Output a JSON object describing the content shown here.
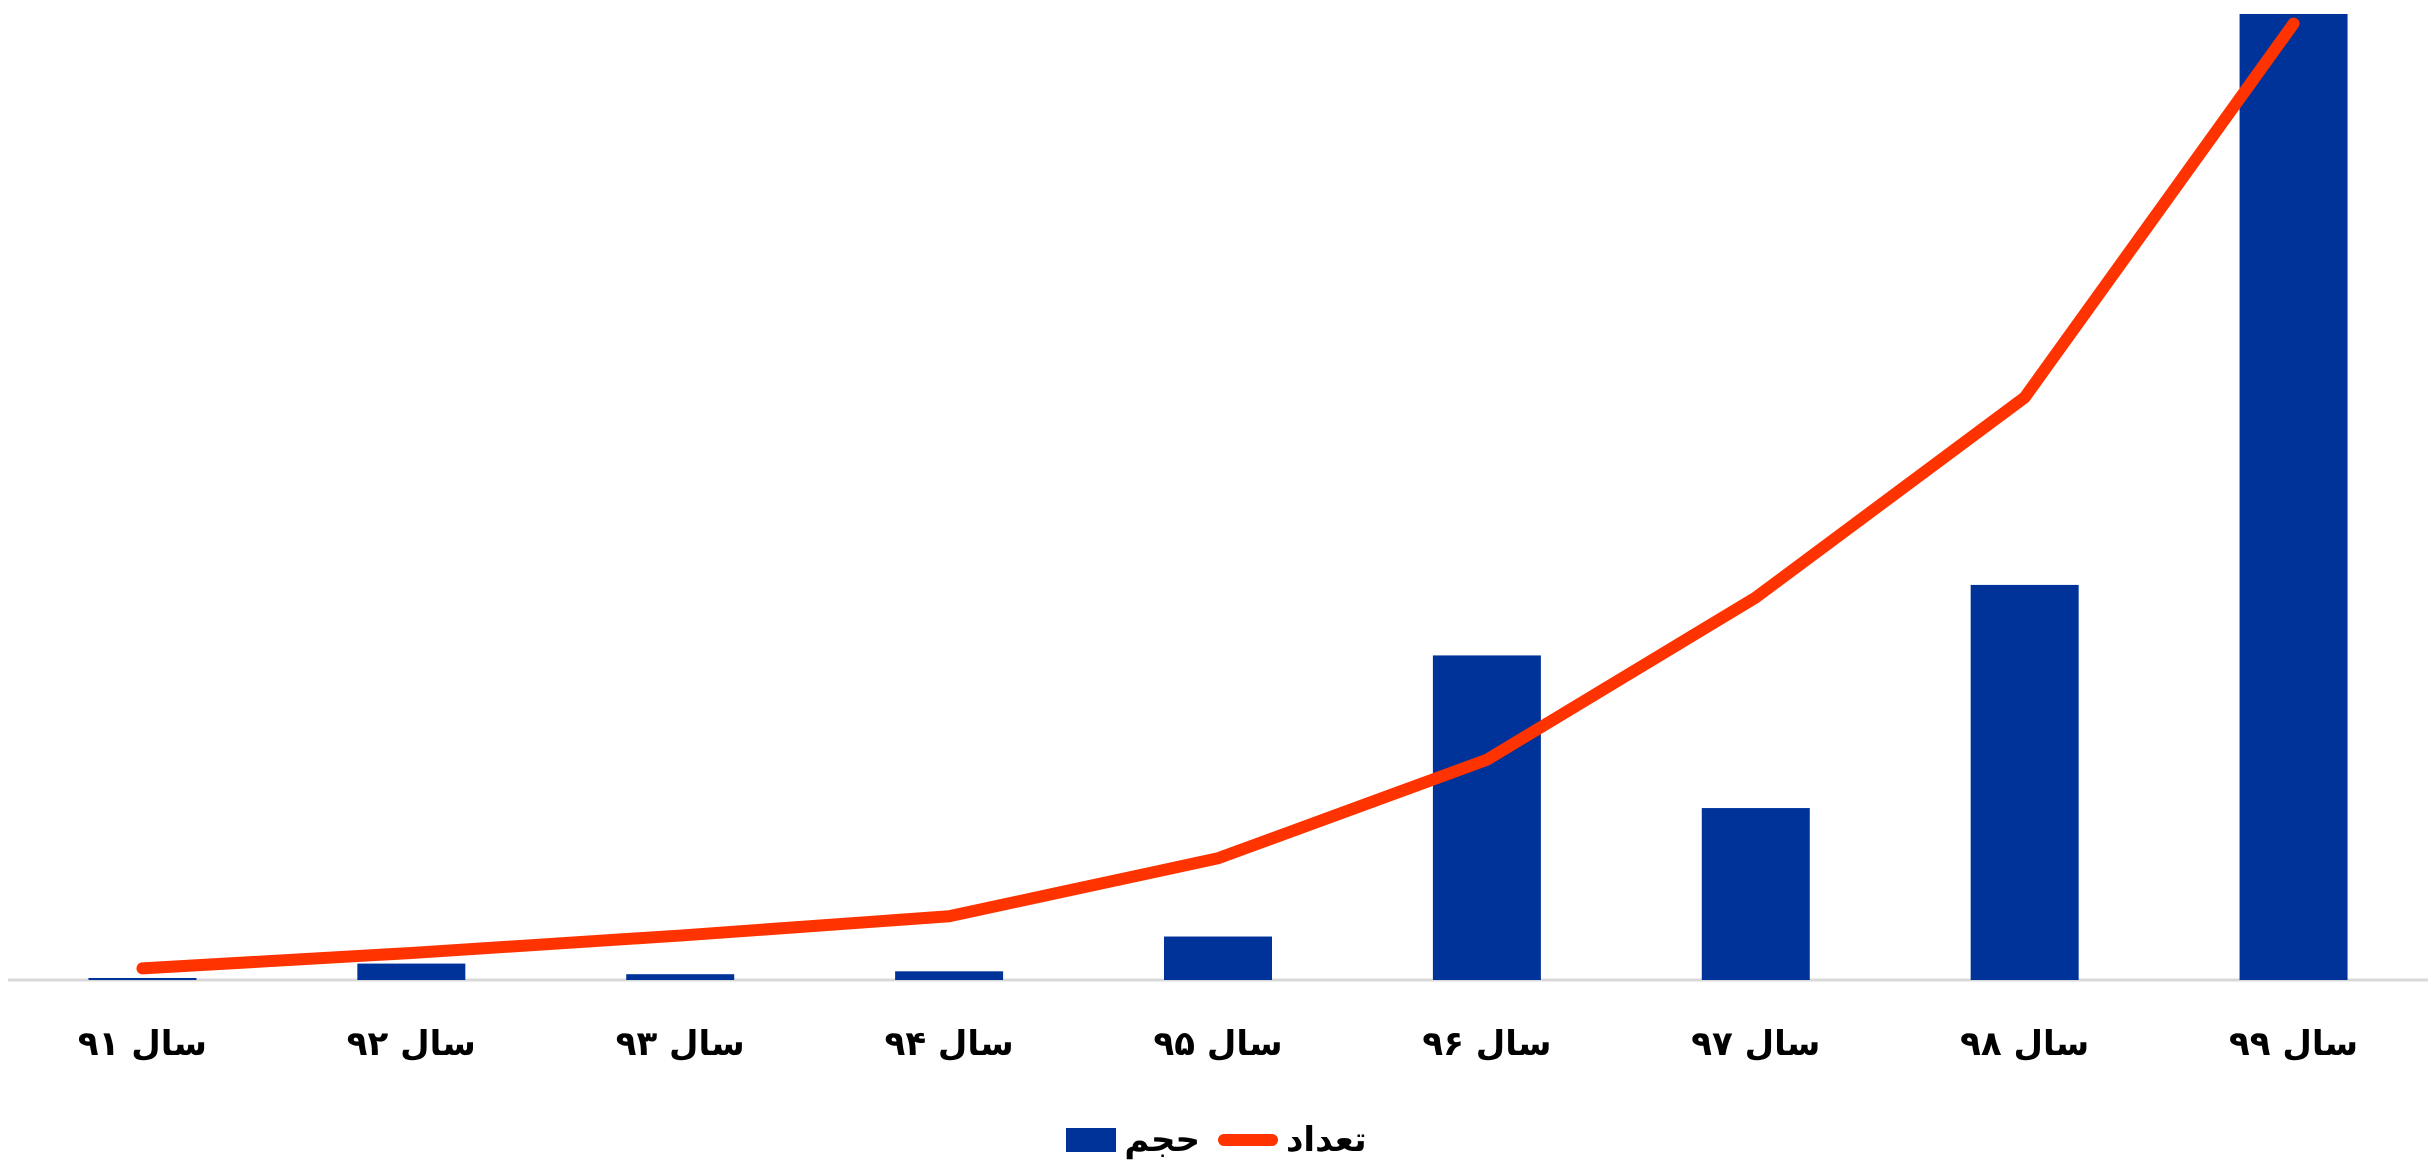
{
  "chart_data": {
    "type": "bar",
    "categories": [
      "سال ۹۱",
      "سال ۹۲",
      "سال ۹۳",
      "سال ۹۴",
      "سال ۹۵",
      "سال ۹۶",
      "سال ۹۷",
      "سال ۹۸",
      "سال ۹۹"
    ],
    "series": [
      {
        "name": "حجم",
        "type": "bar",
        "color": "#003399",
        "values": [
          0.2,
          1.7,
          0.6,
          0.9,
          4.5,
          33.6,
          17.8,
          40.9,
          100
        ]
      },
      {
        "name": "تعداد",
        "type": "line",
        "color": "#ff3300",
        "values": [
          1.2,
          2.8,
          4.6,
          6.6,
          12.6,
          22.8,
          39.6,
          60.3,
          99
        ]
      }
    ],
    "ylim": [
      0,
      100
    ],
    "grid": false,
    "legend_position": "bottom",
    "title": "",
    "xlabel": "",
    "ylabel": ""
  }
}
